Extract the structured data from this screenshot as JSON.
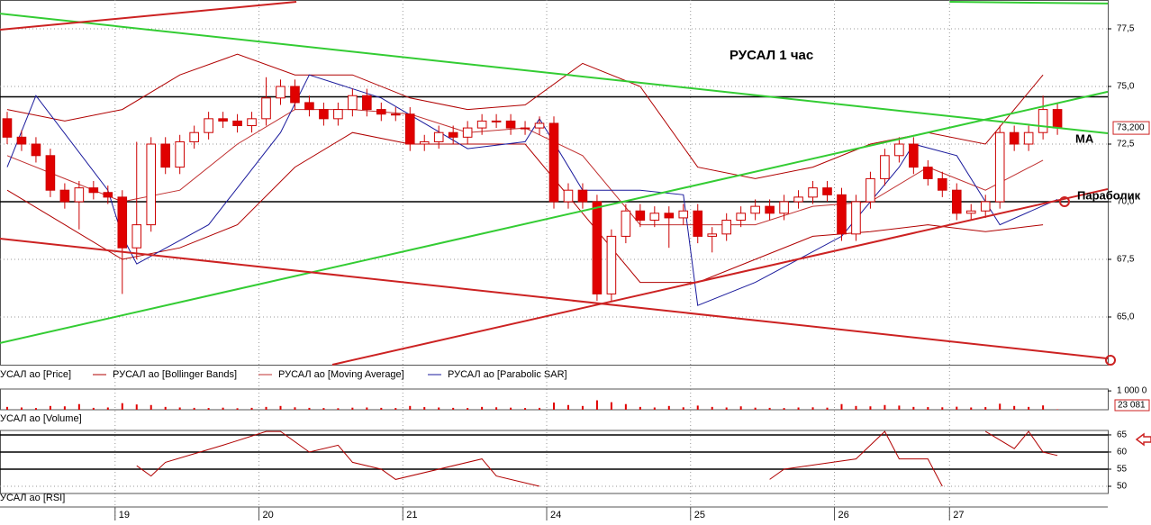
{
  "chart_data": [
    {
      "type": "candlestick",
      "title": "РУСАЛ    1 час",
      "series_name": "УСАЛ ао [Price]",
      "open": [
        73.6,
        72.8,
        72.5,
        72.0,
        70.5,
        70.0,
        70.6,
        70.4,
        70.2,
        68.0,
        69.0,
        72.5,
        71.5,
        72.6,
        73.0,
        73.6,
        73.5,
        73.3,
        73.6,
        74.5,
        75.0,
        74.3,
        74.0,
        73.6,
        74.0,
        74.6,
        74.0,
        73.8,
        73.8,
        72.5,
        72.6,
        73.0,
        72.8,
        73.2,
        73.5,
        73.5,
        73.2,
        73.2,
        73.4,
        70.0,
        70.5,
        70.0,
        66.0,
        68.5,
        69.6,
        69.2,
        69.5,
        69.3,
        69.6,
        68.5,
        68.6,
        69.2,
        69.5,
        69.8,
        69.5,
        70.0,
        70.2,
        70.6,
        70.3,
        68.6,
        70.0,
        71.0,
        72.0,
        72.5,
        71.5,
        71.0,
        70.5,
        69.5,
        69.6,
        70.0,
        73.0,
        72.5,
        73.0,
        74.0
      ],
      "high": [
        73.9,
        73.1,
        72.8,
        72.3,
        70.8,
        70.9,
        70.9,
        70.7,
        70.5,
        72.6,
        72.8,
        72.8,
        72.9,
        73.3,
        73.9,
        73.9,
        73.8,
        73.9,
        75.4,
        75.3,
        75.3,
        74.6,
        74.3,
        74.3,
        74.9,
        74.9,
        74.3,
        74.1,
        74.1,
        72.9,
        73.3,
        73.3,
        73.5,
        73.8,
        73.8,
        73.8,
        73.5,
        73.7,
        73.7,
        70.8,
        70.8,
        70.3,
        68.8,
        69.9,
        69.9,
        69.8,
        69.8,
        69.9,
        69.9,
        68.9,
        69.5,
        69.8,
        70.1,
        70.1,
        70.3,
        70.5,
        70.9,
        70.9,
        70.6,
        70.3,
        71.3,
        72.3,
        72.8,
        72.8,
        71.8,
        71.3,
        70.8,
        69.9,
        70.3,
        73.3,
        73.3,
        73.3,
        74.6,
        74.3
      ],
      "low": [
        72.5,
        72.2,
        71.7,
        70.2,
        69.7,
        68.8,
        70.1,
        69.9,
        66.0,
        67.5,
        68.7,
        71.2,
        71.2,
        72.3,
        72.7,
        73.2,
        73.0,
        73.0,
        73.3,
        74.2,
        74.0,
        73.7,
        73.3,
        73.3,
        73.7,
        73.7,
        73.5,
        73.5,
        72.2,
        72.2,
        72.3,
        72.5,
        72.5,
        72.9,
        73.2,
        72.9,
        72.9,
        72.9,
        69.7,
        69.7,
        69.7,
        65.7,
        65.7,
        68.2,
        68.9,
        68.9,
        68.0,
        69.0,
        68.2,
        67.8,
        68.3,
        68.9,
        69.2,
        69.2,
        69.2,
        69.7,
        69.9,
        70.0,
        68.3,
        68.3,
        69.7,
        70.7,
        71.7,
        71.2,
        70.7,
        70.2,
        69.2,
        69.2,
        69.3,
        69.7,
        72.2,
        72.2,
        72.7,
        72.9
      ],
      "close": [
        72.8,
        72.5,
        72.0,
        70.5,
        70.0,
        70.6,
        70.4,
        70.2,
        68.0,
        69.0,
        72.5,
        71.5,
        72.6,
        73.0,
        73.6,
        73.5,
        73.3,
        73.6,
        74.5,
        75.0,
        74.3,
        74.0,
        73.6,
        74.0,
        74.6,
        74.0,
        73.8,
        73.8,
        72.5,
        72.6,
        73.0,
        72.8,
        73.2,
        73.5,
        73.5,
        73.2,
        73.2,
        73.4,
        70.0,
        70.5,
        70.0,
        66.0,
        68.5,
        69.6,
        69.2,
        69.5,
        69.3,
        69.6,
        68.5,
        68.6,
        69.2,
        69.5,
        69.8,
        69.5,
        70.0,
        70.2,
        70.6,
        70.3,
        68.6,
        70.0,
        71.0,
        72.0,
        72.5,
        71.5,
        71.0,
        70.5,
        69.5,
        69.6,
        70.0,
        73.0,
        72.5,
        73.0,
        74.0,
        73.2
      ],
      "up_color": "#ffffff",
      "down_color": "#e00000",
      "edge_color": "#cc0000",
      "xlim": [
        -0.5,
        76.5
      ],
      "ylim": [
        62.93,
        78.75
      ],
      "yticks": [
        {
          "value": 65,
          "label": "65,0"
        },
        {
          "value": 67.5,
          "label": "67,5"
        },
        {
          "value": 70,
          "label": "70,0"
        },
        {
          "value": 72.5,
          "label": "72,5"
        },
        {
          "value": 75,
          "label": "75,0"
        },
        {
          "value": 77.5,
          "label": "77,5"
        }
      ],
      "grid": true,
      "overlays": [
        {
          "name": "РУСАЛ ао [Bollinger Bands]",
          "color": "#b00000",
          "x": [
            0,
            4,
            8,
            12,
            16,
            20,
            24,
            28,
            32,
            36,
            40,
            44,
            48,
            52,
            56,
            60,
            64,
            68,
            72
          ],
          "upper": [
            74,
            73.5,
            74,
            75.5,
            76.4,
            75.5,
            75.5,
            74.5,
            74,
            74.2,
            76,
            75,
            71.5,
            71,
            71.5,
            72.5,
            73,
            72.5,
            75.5
          ],
          "lower": [
            70.5,
            69,
            67.5,
            68,
            69,
            71.5,
            73,
            72.5,
            72.5,
            72.5,
            69.5,
            66.5,
            66.5,
            67.5,
            68.5,
            68.7,
            69,
            68.7,
            69
          ]
        },
        {
          "name": "РУСАЛ ао [Moving Average]",
          "color": "#c03030",
          "x": [
            0,
            4,
            8,
            12,
            16,
            20,
            24,
            28,
            32,
            36,
            40,
            44,
            48,
            52,
            56,
            60,
            64,
            68,
            72
          ],
          "values": [
            72,
            71,
            70,
            70.5,
            72.5,
            74,
            74,
            73.8,
            73,
            73.2,
            72,
            69,
            69,
            69,
            69.8,
            70,
            71.5,
            70.5,
            71.8
          ]
        },
        {
          "name": "РУСАЛ ао [Parabolic SAR]",
          "color": "#1a1a9c",
          "x": [
            0,
            2,
            7,
            8,
            9,
            14,
            19,
            21,
            26,
            32,
            36,
            37,
            40,
            44,
            47,
            48,
            52,
            58,
            62,
            63,
            66,
            68,
            69,
            73
          ],
          "values": [
            71.5,
            74.6,
            70.5,
            68.5,
            67.3,
            69,
            73,
            75.5,
            74.5,
            72.3,
            72.6,
            73.6,
            70.5,
            70.5,
            70.3,
            65.5,
            66.5,
            68.5,
            71.5,
            72.5,
            72,
            70,
            69,
            70.1
          ]
        }
      ],
      "hlines": [
        74.55,
        70.0
      ],
      "hline_color": "#000000",
      "trendlines": [
        {
          "color": "#33cc33",
          "points": [
            [
              -0.5,
              78.16
            ],
            [
              76.5,
              72.97
            ]
          ]
        },
        {
          "color": "#33cc33",
          "points": [
            [
              -0.5,
              63.87
            ],
            [
              76.5,
              74.77
            ]
          ]
        },
        {
          "color": "#33cc33",
          "points": [
            [
              65.5,
              78.67
            ],
            [
              76.5,
              78.6
            ]
          ]
        },
        {
          "color": "#cc2222",
          "points": [
            [
              -0.5,
              77.46
            ],
            [
              20.1,
              78.67
            ]
          ]
        },
        {
          "color": "#cc2222",
          "points": [
            [
              -0.5,
              68.4
            ],
            [
              76.5,
              63.2
            ]
          ]
        },
        {
          "color": "#cc2222",
          "points": [
            [
              22.6,
              62.93
            ],
            [
              76.5,
              70.55
            ]
          ]
        }
      ],
      "annotations": [
        "MA",
        "Параболик"
      ],
      "last_price": {
        "value": 73.2,
        "label": "73,200"
      },
      "time_axis": {
        "labels": [
          "19",
          "20",
          "21",
          "24",
          "25",
          "26",
          "27"
        ],
        "starts": [
          7.5,
          17.5,
          27.5,
          37.5,
          47.5,
          57.5,
          65.5
        ]
      }
    },
    {
      "type": "bar",
      "series_name": "УСАЛ ао [Volume]",
      "color": "#e00000",
      "values": [
        150000,
        120000,
        90000,
        200000,
        180000,
        300000,
        100000,
        120000,
        350000,
        280000,
        250000,
        150000,
        120000,
        100000,
        90000,
        110000,
        80000,
        100000,
        150000,
        200000,
        130000,
        100000,
        90000,
        80000,
        110000,
        120000,
        100000,
        90000,
        200000,
        140000,
        120000,
        100000,
        90000,
        150000,
        130000,
        110000,
        90000,
        100000,
        380000,
        250000,
        200000,
        500000,
        400000,
        300000,
        150000,
        120000,
        200000,
        130000,
        220000,
        150000,
        120000,
        180000,
        110000,
        100000,
        90000,
        120000,
        130000,
        110000,
        300000,
        200000,
        180000,
        250000,
        220000,
        150000,
        140000,
        130000,
        160000,
        120000,
        140000,
        320000,
        200000,
        150000,
        230000,
        23081
      ],
      "ylim": [
        0,
        1100000
      ],
      "yticks": [
        {
          "value": 1000000,
          "label": "1 000 0"
        }
      ],
      "last_value": {
        "value": 23081,
        "label": "23 081"
      }
    },
    {
      "type": "line",
      "series_name": "УСАЛ ао [RSI]",
      "color": "#b00000",
      "x": [
        9,
        10,
        11,
        15,
        18,
        19,
        21,
        23,
        24,
        26,
        27,
        33,
        34,
        37,
        38,
        53,
        54,
        59,
        61,
        62,
        64,
        65,
        66,
        68,
        70,
        71,
        72,
        73
      ],
      "values": [
        56,
        53,
        57,
        62,
        66,
        66,
        60,
        62,
        57,
        55,
        52,
        58,
        53,
        50,
        null,
        52,
        55,
        58,
        66,
        58,
        58,
        50,
        null,
        66,
        61,
        66,
        60,
        59
      ],
      "ylim": [
        47.9,
        66.3
      ],
      "yticks": [
        50,
        55,
        60,
        65
      ],
      "levels": [
        55,
        60,
        65
      ]
    }
  ]
}
